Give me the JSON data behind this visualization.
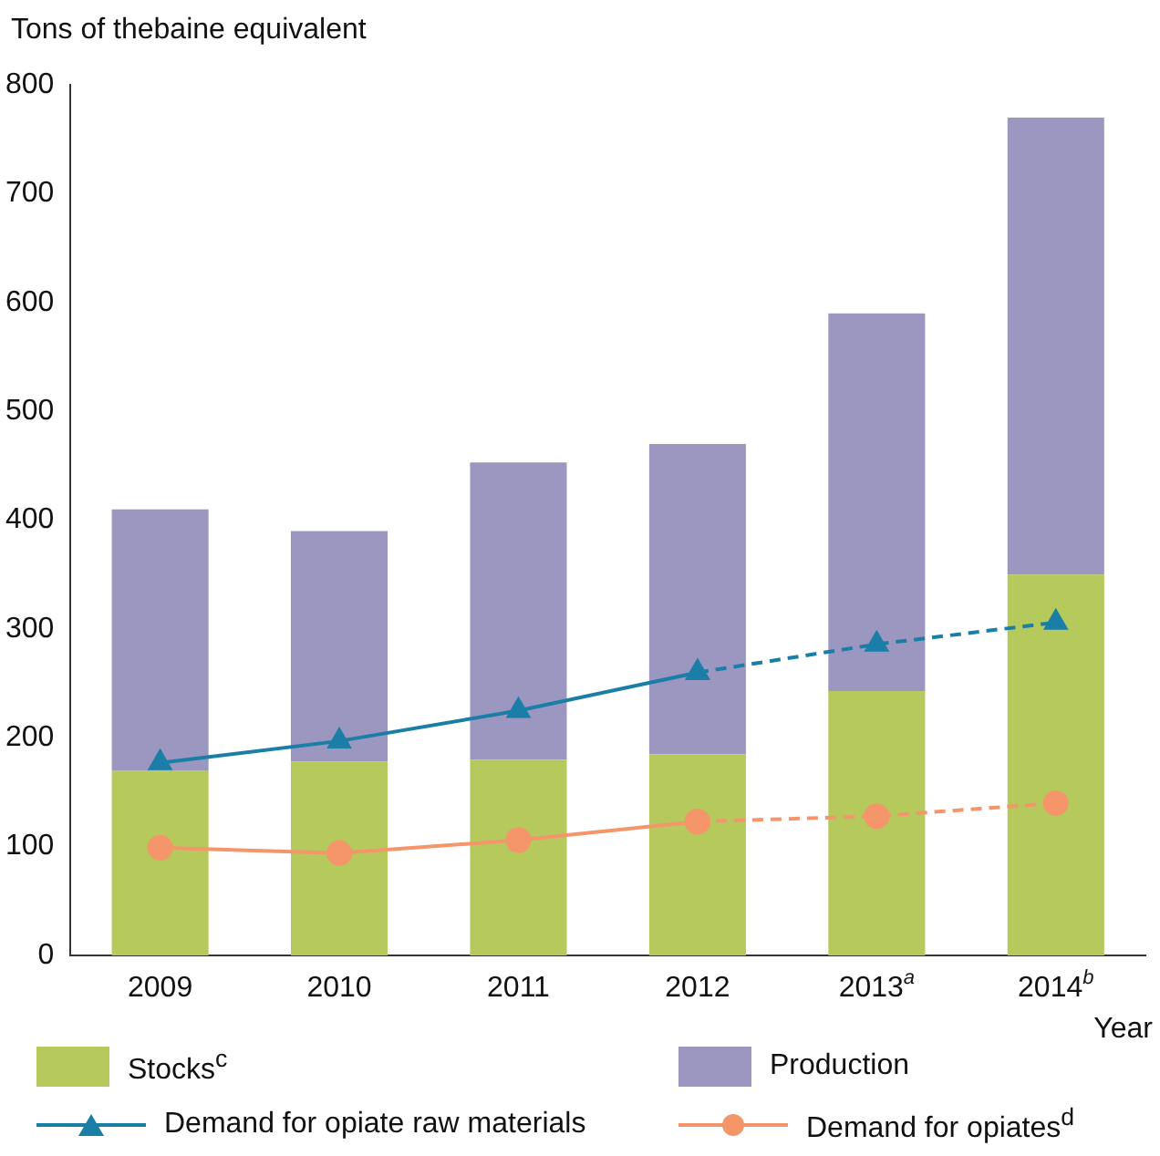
{
  "chart_data": {
    "type": "bar",
    "ylabel": "Tons of thebaine equivalent",
    "xlabel": "Year",
    "categories": [
      "2009",
      "2010",
      "2011",
      "2012",
      "2013$^{a}$",
      "2014$^{b}$"
    ],
    "stacked": true,
    "ylim": [
      0,
      800
    ],
    "yticks": [
      0,
      100,
      200,
      300,
      400,
      500,
      600,
      700,
      800
    ],
    "grid": false,
    "legend": "bottom",
    "series": [
      {
        "name": "Stocks$^{c}$",
        "color": "#b5c95c",
        "values": [
          170,
          178,
          180,
          185,
          243,
          350
        ]
      },
      {
        "name": "Production",
        "color": "#9b97c1",
        "values": [
          240,
          212,
          273,
          285,
          347,
          420
        ]
      },
      {
        "name": "Demand for opiate raw materials",
        "type": "line",
        "color": "#1a7ea6",
        "marker": "triangle",
        "line_style": "solid",
        "values": [
          177,
          197,
          225,
          260,
          null,
          null
        ]
      },
      {
        "type": "line",
        "color": "#1a7ea6",
        "marker": "triangle",
        "line_style": "dashed",
        "values": [
          null,
          null,
          null,
          260,
          286,
          306
        ]
      },
      {
        "name": "Demand for opiates$^{d}$",
        "type": "line",
        "color": "#f4956a",
        "marker": "circle",
        "line_style": "solid",
        "values": [
          99,
          94,
          106,
          123,
          null,
          null
        ]
      },
      {
        "type": "line",
        "color": "#f4956a",
        "marker": "circle",
        "line_style": "dashed",
        "values": [
          null,
          null,
          null,
          123,
          128,
          140
        ]
      }
    ]
  }
}
